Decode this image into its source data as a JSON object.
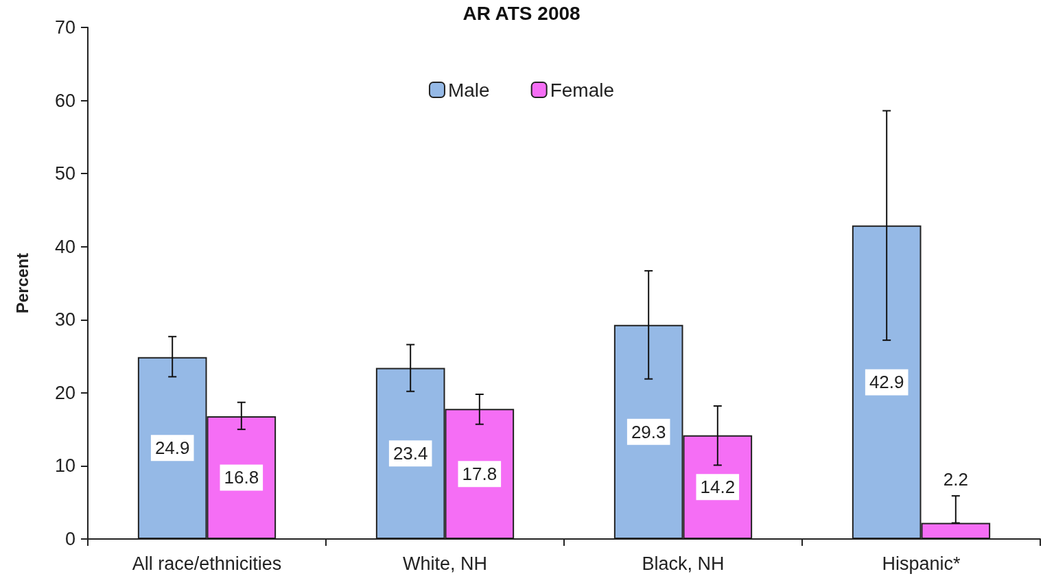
{
  "chart_data": {
    "type": "bar",
    "title": "AR ATS 2008",
    "ylabel": "Percent",
    "categories": [
      "All race/ethnicities",
      "White, NH",
      "Black, NH",
      "Hispanic*"
    ],
    "series": [
      {
        "name": "Male",
        "color": "#95b9e6",
        "values": [
          24.9,
          23.4,
          29.3,
          42.9
        ],
        "errors": [
          [
            22.2,
            27.7
          ],
          [
            20.2,
            26.6
          ],
          [
            21.9,
            36.7
          ],
          [
            27.2,
            58.6
          ]
        ]
      },
      {
        "name": "Female",
        "color": "#f56ef5",
        "values": [
          16.8,
          17.8,
          14.2,
          2.2
        ],
        "errors": [
          [
            15.0,
            18.7
          ],
          [
            15.7,
            19.8
          ],
          [
            10.1,
            18.2
          ],
          [
            2.2,
            5.9
          ]
        ]
      }
    ],
    "ylim": [
      0,
      70
    ],
    "yticks": [
      0,
      10,
      20,
      30,
      40,
      50,
      60,
      70
    ],
    "grid": false,
    "legend": "top",
    "data_labels": true
  }
}
